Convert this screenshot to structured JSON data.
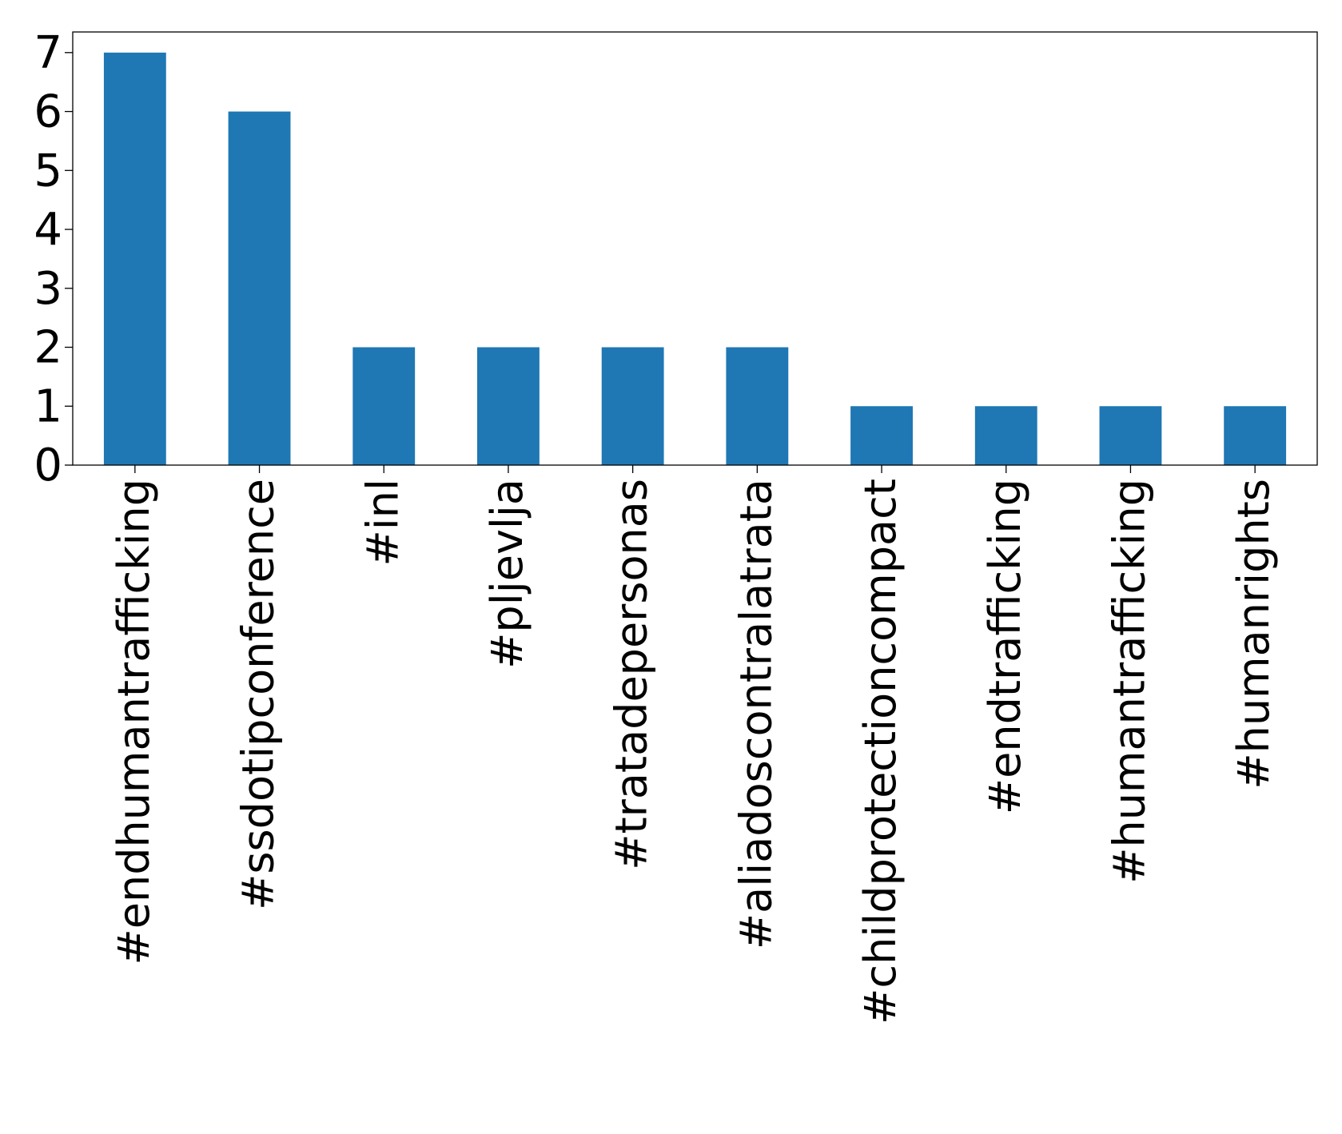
{
  "chart_data": {
    "type": "bar",
    "title": "",
    "xlabel": "",
    "ylabel": "",
    "categories": [
      "#endhumantrafficking",
      "#ssdotipconference",
      "#inl",
      "#pljevlja",
      "#tratadepersonas",
      "#aliadoscontralatrata",
      "#childprotectioncompact",
      "#endtrafficking",
      "#humantrafficking",
      "#humanrights"
    ],
    "values": [
      7,
      6,
      2,
      2,
      2,
      2,
      1,
      1,
      1,
      1
    ],
    "ylim": [
      0,
      7.35
    ],
    "yticks": [
      0,
      1,
      2,
      3,
      4,
      5,
      6,
      7
    ],
    "grid": false,
    "legend": "none",
    "bar_color": "#1f77b4",
    "axis_color": "#000000"
  }
}
